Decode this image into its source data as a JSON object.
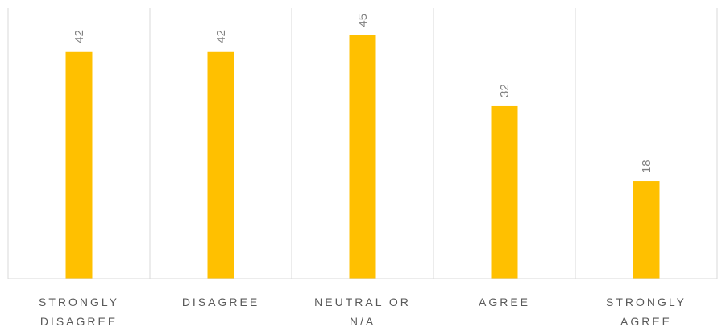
{
  "chart_data": {
    "type": "bar",
    "categories": [
      [
        "STRONGLY",
        "DISAGREE"
      ],
      [
        "DISAGREE"
      ],
      [
        "NEUTRAL OR",
        "N/A"
      ],
      [
        "AGREE"
      ],
      [
        "STRONGLY",
        "AGREE"
      ]
    ],
    "values": [
      42,
      42,
      45,
      32,
      18
    ],
    "ylim": [
      0,
      50
    ],
    "grid": "vertical category separators",
    "legend": "none",
    "data_labels": "rotated above bars",
    "bar_color": "#ffc000",
    "title": "",
    "xlabel": "",
    "ylabel": ""
  }
}
